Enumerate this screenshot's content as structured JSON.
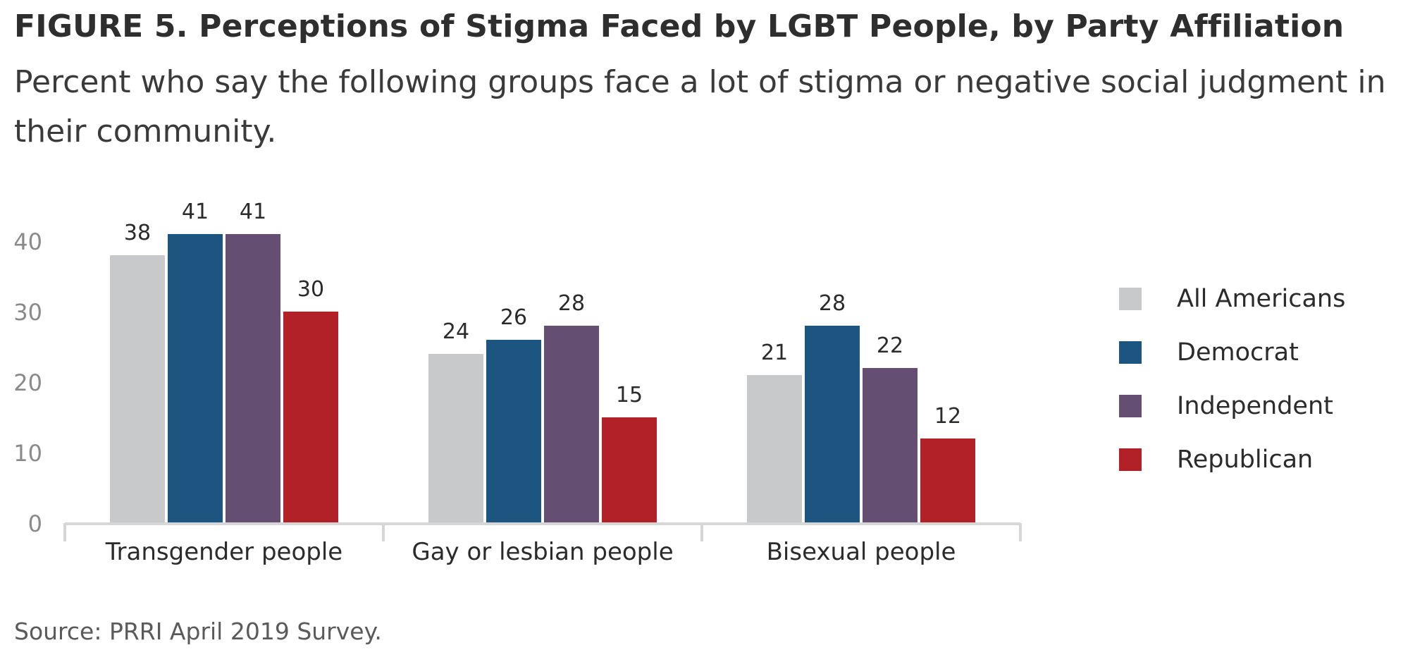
{
  "header": {
    "title": "FIGURE 5.  Perceptions of Stigma Faced by LGBT People, by Party Affiliation",
    "subtitle": "Percent who say the following groups face a lot of stigma or negative social judgment in their community."
  },
  "footer": {
    "source": "Source: PRRI April 2019 Survey."
  },
  "chart_data": {
    "type": "bar",
    "title": "Perceptions of Stigma Faced by LGBT People, by Party Affiliation",
    "subtitle": "Percent who say the following groups face a lot of stigma or negative social judgment in their community.",
    "xlabel": "",
    "ylabel": "",
    "ylim": [
      0,
      40
    ],
    "yticks": [
      "0",
      "10",
      "20",
      "30",
      "40"
    ],
    "ytick_values": [
      0,
      10,
      20,
      30,
      40
    ],
    "grid": false,
    "legend_position": "right",
    "categories": [
      "Transgender people",
      "Gay or lesbian people",
      "Bisexual people"
    ],
    "series": [
      {
        "name": "All Americans",
        "color": "#c8c9cb",
        "values": [
          38,
          24,
          21
        ]
      },
      {
        "name": "Democrat",
        "color": "#1c5580",
        "values": [
          41,
          26,
          28
        ]
      },
      {
        "name": "Independent",
        "color": "#644f73",
        "values": [
          41,
          28,
          22
        ]
      },
      {
        "name": "Republican",
        "color": "#b22127",
        "values": [
          30,
          15,
          12
        ]
      }
    ]
  }
}
